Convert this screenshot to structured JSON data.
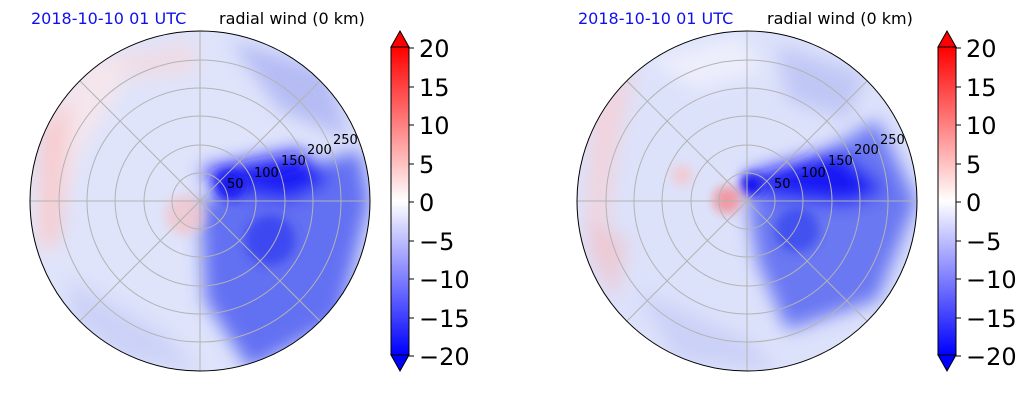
{
  "panels": [
    {
      "date": "2018-10-10 01 UTC",
      "variable": "radial wind (0 km)",
      "radial_ticks": [
        "50",
        "100",
        "150",
        "200",
        "250"
      ]
    },
    {
      "date": "2018-10-10 01 UTC",
      "variable": "radial wind (0 km)",
      "radial_ticks": [
        "50",
        "100",
        "150",
        "200",
        "250"
      ]
    }
  ],
  "colorbar": {
    "ticks": [
      "20",
      "15",
      "10",
      "5",
      "0",
      "−5",
      "−10",
      "−15",
      "−20"
    ],
    "min": -20,
    "max": 20,
    "extend": "both",
    "colormap": [
      "#0000ff",
      "#ffffff",
      "#ff0000"
    ]
  },
  "chart_data": [
    {
      "type": "heatmap",
      "projection": "polar",
      "title": "radial wind (0 km)",
      "subtitle": "2018-10-10 01 UTC",
      "radial_ticks": [
        50,
        100,
        150,
        200,
        250
      ],
      "grid": true,
      "vmin": -20,
      "vmax": 20,
      "colorbar_ticks": [
        20,
        15,
        10,
        5,
        0,
        -5,
        -10,
        -15,
        -20
      ],
      "note": ""
    },
    {
      "type": "heatmap",
      "projection": "polar",
      "title": "radial wind (0 km)",
      "subtitle": "2018-10-10 01 UTC",
      "radial_ticks": [
        50,
        100,
        150,
        200,
        250
      ],
      "grid": true,
      "vmin": -20,
      "vmax": 20,
      "colorbar_ticks": [
        20,
        15,
        10,
        5,
        0,
        -5,
        -10,
        -15,
        -20
      ],
      "note": ""
    }
  ]
}
